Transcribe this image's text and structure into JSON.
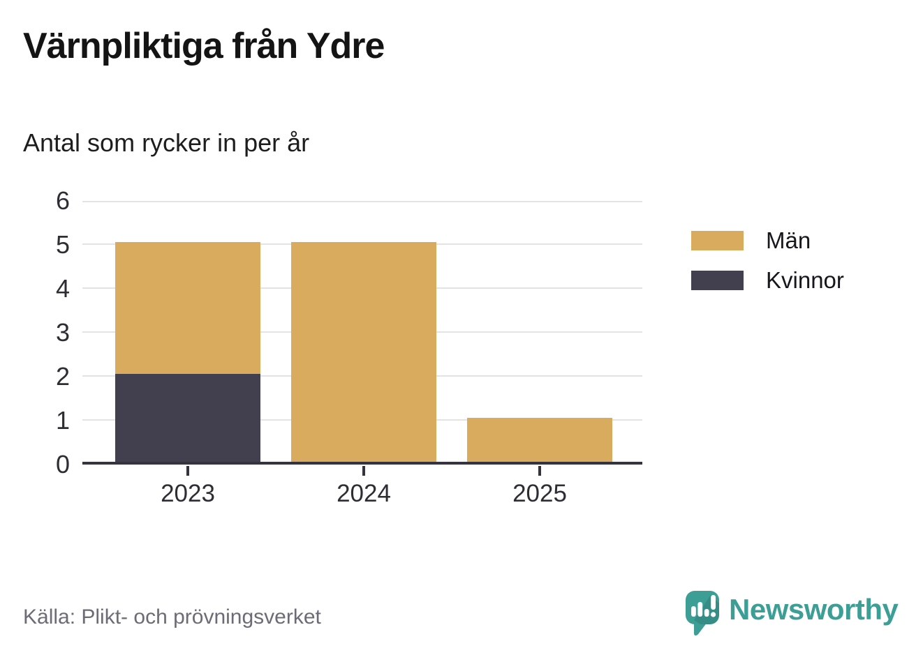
{
  "chart_data": {
    "type": "bar",
    "stacked": true,
    "title": "Värnpliktiga från Ydre",
    "subtitle": "Antal som rycker in per år",
    "categories": [
      "2023",
      "2024",
      "2025"
    ],
    "series": [
      {
        "name": "Män",
        "color": "#d9ab5e",
        "values": [
          3,
          5,
          1
        ]
      },
      {
        "name": "Kvinnor",
        "color": "#423f4e",
        "values": [
          2,
          0,
          0
        ]
      }
    ],
    "stack_bottom_to_top": [
      "Kvinnor",
      "Män"
    ],
    "stack_totals": [
      5,
      5,
      1
    ],
    "ylim": [
      0,
      6
    ],
    "y_ticks": [
      0,
      1,
      2,
      3,
      4,
      5,
      6
    ],
    "grid": true,
    "legend_position": "right",
    "axis_color": "#35343e",
    "gridline_color": "#e3e3e3"
  },
  "footer": {
    "source": "Källa: Plikt- och prövningsverket",
    "brand": "Newsworthy",
    "brand_color": "#3d9e96"
  }
}
